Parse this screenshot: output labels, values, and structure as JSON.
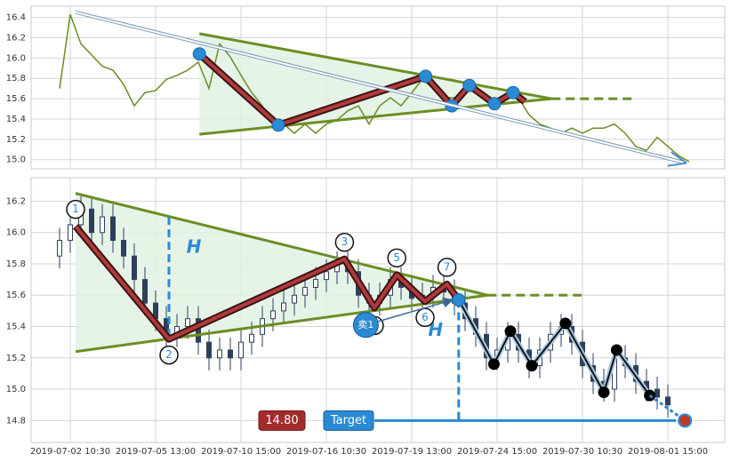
{
  "chart_data": [
    {
      "type": "line",
      "color": "#6b8e23",
      "values": [
        15.7,
        16.43,
        16.14,
        16.03,
        15.92,
        15.88,
        15.74,
        15.53,
        15.66,
        15.68,
        15.79,
        15.83,
        15.88,
        15.96,
        15.7,
        16.14,
        16.01,
        15.83,
        15.66,
        15.53,
        15.35,
        15.35,
        15.26,
        15.35,
        15.26,
        15.35,
        15.39,
        15.48,
        15.53,
        15.35,
        15.53,
        15.61,
        15.53,
        15.66,
        15.79,
        15.7,
        15.61,
        15.61,
        15.66,
        15.7,
        15.61,
        15.57,
        15.61,
        15.61,
        15.44,
        15.35,
        15.31,
        15.26,
        15.31,
        15.26,
        15.31,
        15.31,
        15.35,
        15.26,
        15.13,
        15.09,
        15.22,
        15.13,
        15.04,
        14.98
      ],
      "ylim": [
        14.91,
        16.51
      ],
      "yticks": [
        {
          "value": 15,
          "label": "15.0"
        },
        15.2,
        15.4,
        15.6,
        15.8,
        {
          "value": 16,
          "label": "16.0"
        },
        16.2,
        16.4
      ],
      "grid": true,
      "triangle": {
        "upper": [
          {
            "x": 13.1,
            "y": 16.24
          },
          {
            "x": 46.1,
            "y": 15.6
          }
        ],
        "lower": [
          {
            "x": 13.1,
            "y": 15.25
          },
          {
            "x": 46.1,
            "y": 15.6
          }
        ],
        "extension": [
          {
            "x": 46.1,
            "y": 15.6
          },
          {
            "x": 53.6,
            "y": 15.6
          }
        ]
      },
      "zigzag": [
        {
          "x": 13.1,
          "y": 16.04
        },
        {
          "x": 20.5,
          "y": 15.34
        },
        {
          "x": 34.3,
          "y": 15.82
        },
        {
          "x": 36.75,
          "y": 15.53
        },
        {
          "x": 38.4,
          "y": 15.73
        },
        {
          "x": 40.75,
          "y": 15.55
        },
        {
          "x": 42.5,
          "y": 15.66
        },
        {
          "x": 43.6,
          "y": 15.57
        }
      ],
      "trend_arrow": [
        {
          "x": 1.5,
          "y": 16.45
        },
        {
          "x": 58.6,
          "y": 14.97
        }
      ]
    },
    {
      "type": "candlestick",
      "color": "#2e3f5c",
      "categories": [
        null,
        "2019-07-02 10:30",
        null,
        null,
        null,
        null,
        null,
        null,
        null,
        "2019-07-05 13:00",
        null,
        null,
        null,
        null,
        null,
        null,
        null,
        "2019-07-10 15:00",
        null,
        null,
        null,
        null,
        null,
        null,
        null,
        "2019-07-16 10:30",
        null,
        null,
        null,
        null,
        null,
        null,
        null,
        "2019-07-19 13:00",
        null,
        null,
        null,
        null,
        null,
        null,
        null,
        "2019-07-24 15:00",
        null,
        null,
        null,
        null,
        null,
        null,
        null,
        "2019-07-30 10:30",
        null,
        null,
        null,
        null,
        null,
        null,
        null,
        "2019-08-01 15:00"
      ],
      "open": [
        15.85,
        15.95,
        16.05,
        16.15,
        16.0,
        16.1,
        15.95,
        15.85,
        15.7,
        15.55,
        15.45,
        15.35,
        15.4,
        15.45,
        15.3,
        15.2,
        15.25,
        15.2,
        15.3,
        15.35,
        15.45,
        15.5,
        15.55,
        15.6,
        15.65,
        15.7,
        15.75,
        15.8,
        15.75,
        15.6,
        15.55,
        15.6,
        15.7,
        15.65,
        15.58,
        15.6,
        15.65,
        15.62,
        15.55,
        15.45,
        15.35,
        15.2,
        15.25,
        15.35,
        15.25,
        15.15,
        15.25,
        15.35,
        15.4,
        15.3,
        15.15,
        15.05,
        15.0,
        15.2,
        15.15,
        15.05,
        15.0,
        14.95
      ],
      "high": [
        16.03,
        16.13,
        16.23,
        16.23,
        16.18,
        16.18,
        16.03,
        15.93,
        15.78,
        15.63,
        15.53,
        15.48,
        15.53,
        15.53,
        15.38,
        15.33,
        15.33,
        15.38,
        15.43,
        15.53,
        15.58,
        15.63,
        15.68,
        15.73,
        15.78,
        15.83,
        15.88,
        15.88,
        15.83,
        15.68,
        15.68,
        15.78,
        15.78,
        15.73,
        15.68,
        15.73,
        15.73,
        15.7,
        15.63,
        15.53,
        15.43,
        15.33,
        15.43,
        15.43,
        15.33,
        15.33,
        15.43,
        15.48,
        15.48,
        15.38,
        15.23,
        15.13,
        15.28,
        15.28,
        15.23,
        15.13,
        15.08,
        15.03
      ],
      "low": [
        15.77,
        15.87,
        15.97,
        15.92,
        15.92,
        15.87,
        15.77,
        15.62,
        15.47,
        15.37,
        15.27,
        15.27,
        15.32,
        15.22,
        15.12,
        15.12,
        15.12,
        15.12,
        15.22,
        15.27,
        15.37,
        15.42,
        15.47,
        15.52,
        15.57,
        15.62,
        15.67,
        15.67,
        15.52,
        15.47,
        15.47,
        15.52,
        15.57,
        15.5,
        15.5,
        15.52,
        15.54,
        15.47,
        15.37,
        15.27,
        15.12,
        15.12,
        15.17,
        15.17,
        15.07,
        15.07,
        15.17,
        15.27,
        15.22,
        15.07,
        14.97,
        14.92,
        14.92,
        15.07,
        14.97,
        14.92,
        14.87,
        14.82
      ],
      "close": [
        15.95,
        16.05,
        16.15,
        16.0,
        16.1,
        15.95,
        15.85,
        15.7,
        15.55,
        15.45,
        15.35,
        15.4,
        15.45,
        15.3,
        15.2,
        15.25,
        15.2,
        15.3,
        15.35,
        15.45,
        15.5,
        15.55,
        15.6,
        15.65,
        15.7,
        15.75,
        15.8,
        15.75,
        15.6,
        15.55,
        15.6,
        15.7,
        15.65,
        15.58,
        15.6,
        15.65,
        15.62,
        15.55,
        15.45,
        15.35,
        15.2,
        15.25,
        15.35,
        15.25,
        15.15,
        15.25,
        15.35,
        15.4,
        15.3,
        15.15,
        15.05,
        15.0,
        15.2,
        15.15,
        15.05,
        15.0,
        14.95,
        14.9
      ],
      "ylim": [
        14.66,
        16.35
      ],
      "yticks": [
        14.8,
        {
          "value": 15,
          "label": "15.0"
        },
        15.2,
        15.4,
        15.6,
        15.8,
        {
          "value": 16,
          "label": "16.0"
        },
        16.2
      ],
      "grid": true,
      "triangle": {
        "upper": [
          {
            "x": 1.5,
            "y": 16.25
          },
          {
            "x": 40.1,
            "y": 15.6
          }
        ],
        "lower": [
          {
            "x": 1.5,
            "y": 15.24
          },
          {
            "x": 40.1,
            "y": 15.6
          }
        ],
        "extension": [
          {
            "x": 40.1,
            "y": 15.6
          },
          {
            "x": 49,
            "y": 15.6
          }
        ]
      },
      "zigzag": [
        {
          "x": 1.5,
          "y": 16.04,
          "label": "1"
        },
        {
          "x": 10.25,
          "y": 15.32,
          "label": "2"
        },
        {
          "x": 26.7,
          "y": 15.83,
          "label": "3"
        },
        {
          "x": 29.5,
          "y": 15.52
        },
        {
          "x": 31.6,
          "y": 15.73,
          "label": "5"
        },
        {
          "x": 34.25,
          "y": 15.56,
          "label": "6"
        },
        {
          "x": 36.3,
          "y": 15.67,
          "label": "7"
        },
        {
          "x": 37.4,
          "y": 15.57
        }
      ],
      "breakdown": [
        {
          "x": 37.4,
          "y": 15.57
        },
        {
          "x": 40.7,
          "y": 15.16
        },
        {
          "x": 42.25,
          "y": 15.37
        },
        {
          "x": 44.25,
          "y": 15.15
        },
        {
          "x": 47.4,
          "y": 15.42
        },
        {
          "x": 51,
          "y": 14.98
        },
        {
          "x": 52.2,
          "y": 15.25
        },
        {
          "x": 55.3,
          "y": 14.96
        }
      ],
      "height_lines": [
        {
          "label": "H",
          "x": 10.25,
          "from": 16.1,
          "to": 15.32
        },
        {
          "label": "H",
          "x": 37.4,
          "from": 15.57,
          "to": 14.8
        }
      ],
      "sell_signal": {
        "label": "卖1",
        "x": 28.7,
        "y": 15.41
      },
      "target": {
        "title": "Target",
        "label": "14.80",
        "value": 14.8,
        "x": 58.6
      }
    }
  ]
}
